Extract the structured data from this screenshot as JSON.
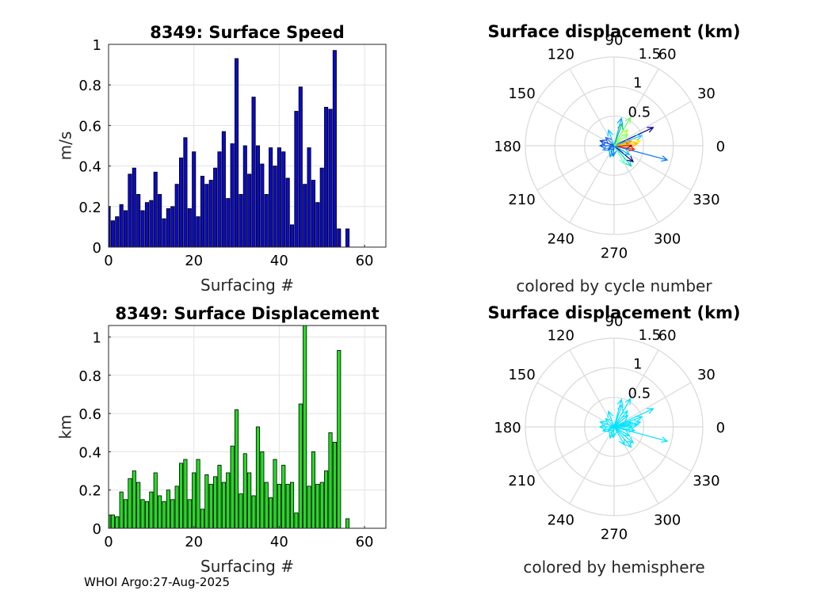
{
  "footer": "WHOI Argo:27-Aug-2025",
  "chart_data": [
    {
      "id": "speed",
      "type": "bar",
      "title": "8349: Surface Speed",
      "xlabel": "Surfacing #",
      "ylabel": "m/s",
      "xlim": [
        0,
        65
      ],
      "ylim": [
        0,
        1
      ],
      "xticks": [
        0,
        20,
        40,
        60
      ],
      "yticks": [
        0,
        0.2,
        0.4,
        0.6,
        0.8,
        1
      ],
      "ytick_labels": [
        "0",
        "0.2",
        "0.4",
        "0.6",
        "0.8",
        "1"
      ],
      "bar_color": "#0a0acc",
      "x": [
        0,
        1,
        2,
        3,
        4,
        5,
        6,
        7,
        8,
        9,
        10,
        11,
        12,
        13,
        14,
        15,
        16,
        17,
        18,
        19,
        20,
        21,
        22,
        23,
        24,
        25,
        26,
        27,
        28,
        29,
        30,
        31,
        32,
        33,
        34,
        35,
        36,
        37,
        38,
        39,
        40,
        41,
        42,
        43,
        44,
        45,
        46,
        47,
        48,
        49,
        50,
        51,
        52,
        53,
        54,
        56
      ],
      "values": [
        0.2,
        0.13,
        0.15,
        0.21,
        0.18,
        0.36,
        0.39,
        0.26,
        0.18,
        0.22,
        0.23,
        0.37,
        0.26,
        0.14,
        0.19,
        0.2,
        0.31,
        0.44,
        0.54,
        0.19,
        0.47,
        0.15,
        0.35,
        0.31,
        0.33,
        0.39,
        0.47,
        0.57,
        0.24,
        0.51,
        0.93,
        0.26,
        0.5,
        0.36,
        0.74,
        0.5,
        0.41,
        0.26,
        0.49,
        0.4,
        0.49,
        0.47,
        0.34,
        0.11,
        0.67,
        0.79,
        0.31,
        0.49,
        0.33,
        0.22,
        0.39,
        0.69,
        0.68,
        0.97,
        0.09,
        0.09
      ]
    },
    {
      "id": "displacement",
      "type": "bar",
      "title": "8349: Surface Displacement",
      "xlabel": "Surfacing #",
      "ylabel": "km",
      "xlim": [
        0,
        65
      ],
      "ylim": [
        0,
        1.06
      ],
      "xticks": [
        0,
        20,
        40,
        60
      ],
      "yticks": [
        0,
        0.2,
        0.4,
        0.6,
        0.8,
        1
      ],
      "ytick_labels": [
        "0",
        "0.2",
        "0.4",
        "0.6",
        "0.8",
        "1"
      ],
      "bar_color": "#22dd22",
      "x": [
        0,
        1,
        2,
        3,
        4,
        5,
        6,
        7,
        8,
        9,
        10,
        11,
        12,
        13,
        14,
        15,
        16,
        17,
        18,
        19,
        20,
        21,
        22,
        23,
        24,
        25,
        26,
        27,
        28,
        29,
        30,
        31,
        32,
        33,
        34,
        35,
        36,
        37,
        38,
        39,
        40,
        41,
        42,
        43,
        44,
        45,
        46,
        47,
        48,
        49,
        50,
        51,
        52,
        53,
        54,
        56
      ],
      "values": [
        0.07,
        0.07,
        0.06,
        0.19,
        0.15,
        0.26,
        0.3,
        0.24,
        0.15,
        0.14,
        0.19,
        0.29,
        0.17,
        0.14,
        0.2,
        0.15,
        0.22,
        0.34,
        0.36,
        0.15,
        0.29,
        0.36,
        0.1,
        0.28,
        0.23,
        0.27,
        0.33,
        0.24,
        0.29,
        0.43,
        0.62,
        0.18,
        0.39,
        0.29,
        0.17,
        0.53,
        0.4,
        0.24,
        0.16,
        0.36,
        0.23,
        0.33,
        0.23,
        0.24,
        0.08,
        0.65,
        1.06,
        0.22,
        0.4,
        0.23,
        0.24,
        0.3,
        0.5,
        0.45,
        0.93,
        0.05
      ]
    },
    {
      "id": "polar-cycle",
      "type": "polar-vectors",
      "title": "Surface displacement (km)",
      "subtitle": "colored by cycle number",
      "rlim": [
        0,
        1.5
      ],
      "rticks": [
        0.5,
        1,
        1.5
      ],
      "rtick_labels": [
        "0.5",
        "1",
        "1.5"
      ],
      "theta_labels": [
        "0",
        "30",
        "60",
        "90",
        "120",
        "150",
        "180",
        "210",
        "240",
        "270",
        "300",
        "330"
      ],
      "color_mode": "cycle",
      "vectors": [
        {
          "angle_deg": 25,
          "length": 0.73,
          "color": "#000099"
        },
        {
          "angle_deg": 345,
          "length": 0.93,
          "color": "#0077ff"
        },
        {
          "angle_deg": 10,
          "length": 0.45,
          "color": "#ffee00"
        },
        {
          "angle_deg": 350,
          "length": 0.35,
          "color": "#ff2200"
        },
        {
          "angle_deg": 0,
          "length": 0.3,
          "color": "#aa0000"
        },
        {
          "angle_deg": 5,
          "length": 0.4,
          "color": "#ffbb00"
        },
        {
          "angle_deg": 15,
          "length": 0.3,
          "color": "#ff8800"
        },
        {
          "angle_deg": 60,
          "length": 0.55,
          "color": "#66ff66"
        },
        {
          "angle_deg": 70,
          "length": 0.4,
          "color": "#00cc66"
        },
        {
          "angle_deg": 75,
          "length": 0.48,
          "color": "#00aaff"
        },
        {
          "angle_deg": 110,
          "length": 0.28,
          "color": "#00ccff"
        },
        {
          "angle_deg": 135,
          "length": 0.2,
          "color": "#2266ff"
        },
        {
          "angle_deg": 160,
          "length": 0.25,
          "color": "#0044cc"
        },
        {
          "angle_deg": 180,
          "length": 0.24,
          "color": "#0055ff"
        },
        {
          "angle_deg": 200,
          "length": 0.2,
          "color": "#3399ff"
        },
        {
          "angle_deg": 250,
          "length": 0.2,
          "color": "#00aaff"
        },
        {
          "angle_deg": 265,
          "length": 0.18,
          "color": "#0088ff"
        },
        {
          "angle_deg": 300,
          "length": 0.35,
          "color": "#66ffcc"
        },
        {
          "angle_deg": 310,
          "length": 0.45,
          "color": "#00ddaa"
        },
        {
          "angle_deg": 320,
          "length": 0.42,
          "color": "#000088"
        },
        {
          "angle_deg": 330,
          "length": 0.3,
          "color": "#00bbee"
        },
        {
          "angle_deg": 20,
          "length": 0.5,
          "color": "#22ccff"
        },
        {
          "angle_deg": 40,
          "length": 0.3,
          "color": "#77ff77"
        },
        {
          "angle_deg": 50,
          "length": 0.35,
          "color": "#aaff44"
        },
        {
          "angle_deg": 215,
          "length": 0.12,
          "color": "#0066dd"
        }
      ]
    },
    {
      "id": "polar-hemisphere",
      "type": "polar-vectors",
      "title": "Surface displacement (km)",
      "subtitle": "colored by hemisphere",
      "rlim": [
        0,
        1.5
      ],
      "rticks": [
        0.5,
        1,
        1.5
      ],
      "rtick_labels": [
        "0.5",
        "1",
        "1.5"
      ],
      "theta_labels": [
        "0",
        "30",
        "60",
        "90",
        "120",
        "150",
        "180",
        "210",
        "240",
        "270",
        "300",
        "330"
      ],
      "color_mode": "hemisphere",
      "vectors": [
        {
          "angle_deg": 25,
          "length": 0.73,
          "color": "#00e5ff"
        },
        {
          "angle_deg": 345,
          "length": 0.93,
          "color": "#00e5ff"
        },
        {
          "angle_deg": 10,
          "length": 0.45,
          "color": "#00e5ff"
        },
        {
          "angle_deg": 350,
          "length": 0.35,
          "color": "#00e5ff"
        },
        {
          "angle_deg": 0,
          "length": 0.3,
          "color": "#00e5ff"
        },
        {
          "angle_deg": 5,
          "length": 0.4,
          "color": "#00e5ff"
        },
        {
          "angle_deg": 15,
          "length": 0.3,
          "color": "#00e5ff"
        },
        {
          "angle_deg": 60,
          "length": 0.55,
          "color": "#00e5ff"
        },
        {
          "angle_deg": 70,
          "length": 0.4,
          "color": "#00e5ff"
        },
        {
          "angle_deg": 75,
          "length": 0.48,
          "color": "#00e5ff"
        },
        {
          "angle_deg": 110,
          "length": 0.28,
          "color": "#00e5ff"
        },
        {
          "angle_deg": 135,
          "length": 0.2,
          "color": "#00e5ff"
        },
        {
          "angle_deg": 160,
          "length": 0.25,
          "color": "#00e5ff"
        },
        {
          "angle_deg": 180,
          "length": 0.24,
          "color": "#00e5ff"
        },
        {
          "angle_deg": 200,
          "length": 0.2,
          "color": "#00e5ff"
        },
        {
          "angle_deg": 250,
          "length": 0.2,
          "color": "#00e5ff"
        },
        {
          "angle_deg": 265,
          "length": 0.18,
          "color": "#00e5ff"
        },
        {
          "angle_deg": 300,
          "length": 0.35,
          "color": "#00e5ff"
        },
        {
          "angle_deg": 310,
          "length": 0.45,
          "color": "#00e5ff"
        },
        {
          "angle_deg": 320,
          "length": 0.42,
          "color": "#00e5ff"
        },
        {
          "angle_deg": 330,
          "length": 0.3,
          "color": "#00e5ff"
        },
        {
          "angle_deg": 20,
          "length": 0.5,
          "color": "#00e5ff"
        },
        {
          "angle_deg": 40,
          "length": 0.3,
          "color": "#00e5ff"
        },
        {
          "angle_deg": 50,
          "length": 0.35,
          "color": "#00e5ff"
        },
        {
          "angle_deg": 215,
          "length": 0.12,
          "color": "#00e5ff"
        }
      ]
    }
  ]
}
